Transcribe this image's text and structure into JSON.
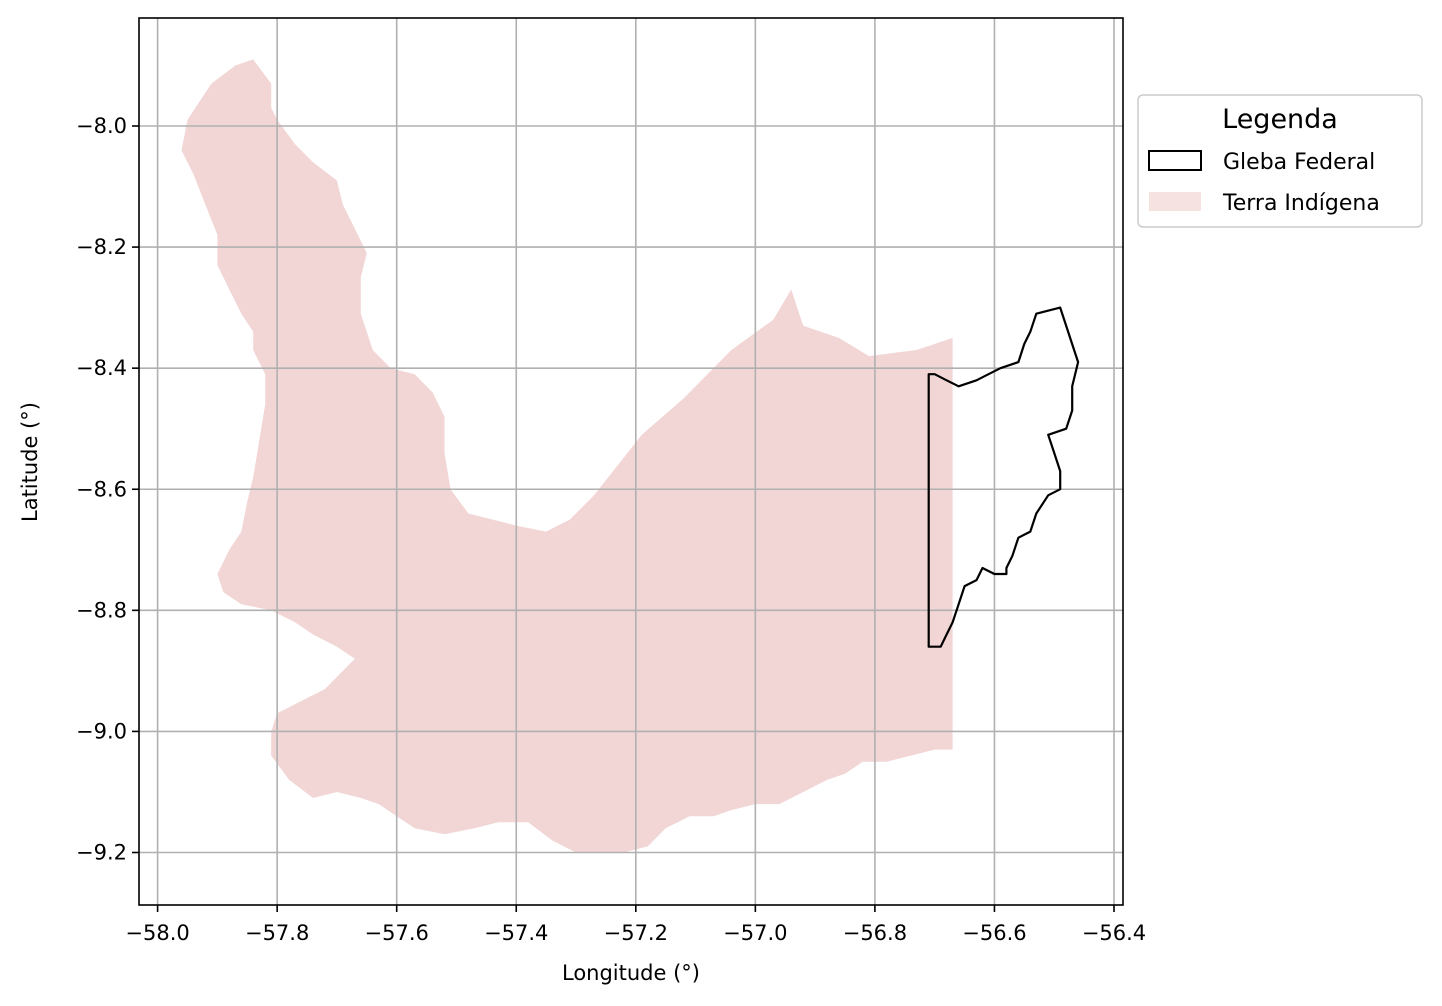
{
  "chart_data": {
    "type": "map",
    "xlabel": "Longitude (°)",
    "ylabel": "Latitude (°)",
    "xlim": [
      -58.03,
      -56.39
    ],
    "ylim": [
      -9.28,
      -7.82
    ],
    "grid": true,
    "legend_placement": "outside right, top",
    "x_ticks": [
      -58.0,
      -57.8,
      -57.6,
      -57.4,
      -57.2,
      -57.0,
      -56.8,
      -56.6,
      -56.4
    ],
    "x_tick_labels": [
      "−58.0",
      "−57.8",
      "−57.6",
      "−57.4",
      "−57.2",
      "−57.0",
      "−56.8",
      "−56.6",
      "−56.4"
    ],
    "y_ticks": [
      -8.0,
      -8.2,
      -8.4,
      -8.6,
      -8.8,
      -9.0,
      -9.2
    ],
    "y_tick_labels": [
      "−8.0",
      "−8.2",
      "−8.4",
      "−8.6",
      "−8.8",
      "−9.0",
      "−9.2"
    ],
    "legend": {
      "title": "Legenda",
      "entries": [
        {
          "label": "Gleba Federal",
          "kind": "outline",
          "color": "#000000"
        },
        {
          "label": "Terra Indígena",
          "kind": "fill",
          "color": "#f2d6d5"
        }
      ]
    },
    "layers": {
      "terra_indigena": {
        "name": "Terra Indígena",
        "fill": "#f2d6d5",
        "polygon": [
          [
            -57.84,
            -7.89
          ],
          [
            -57.81,
            -7.93
          ],
          [
            -57.81,
            -7.97
          ],
          [
            -57.8,
            -7.99
          ],
          [
            -57.77,
            -8.03
          ],
          [
            -57.74,
            -8.06
          ],
          [
            -57.7,
            -8.09
          ],
          [
            -57.69,
            -8.13
          ],
          [
            -57.67,
            -8.17
          ],
          [
            -57.65,
            -8.21
          ],
          [
            -57.66,
            -8.25
          ],
          [
            -57.66,
            -8.31
          ],
          [
            -57.64,
            -8.37
          ],
          [
            -57.61,
            -8.4
          ],
          [
            -57.57,
            -8.41
          ],
          [
            -57.54,
            -8.44
          ],
          [
            -57.52,
            -8.48
          ],
          [
            -57.52,
            -8.54
          ],
          [
            -57.51,
            -8.6
          ],
          [
            -57.48,
            -8.64
          ],
          [
            -57.44,
            -8.65
          ],
          [
            -57.4,
            -8.66
          ],
          [
            -57.35,
            -8.67
          ],
          [
            -57.31,
            -8.65
          ],
          [
            -57.27,
            -8.61
          ],
          [
            -57.19,
            -8.51
          ],
          [
            -57.12,
            -8.45
          ],
          [
            -57.04,
            -8.37
          ],
          [
            -56.97,
            -8.32
          ],
          [
            -56.94,
            -8.27
          ],
          [
            -56.92,
            -8.33
          ],
          [
            -56.86,
            -8.35
          ],
          [
            -56.81,
            -8.38
          ],
          [
            -56.73,
            -8.37
          ],
          [
            -56.67,
            -8.35
          ],
          [
            -56.67,
            -9.03
          ],
          [
            -56.7,
            -9.03
          ],
          [
            -56.74,
            -9.04
          ],
          [
            -56.78,
            -9.05
          ],
          [
            -56.82,
            -9.05
          ],
          [
            -56.85,
            -9.07
          ],
          [
            -56.88,
            -9.08
          ],
          [
            -56.92,
            -9.1
          ],
          [
            -56.96,
            -9.12
          ],
          [
            -57.0,
            -9.12
          ],
          [
            -57.04,
            -9.13
          ],
          [
            -57.07,
            -9.14
          ],
          [
            -57.11,
            -9.14
          ],
          [
            -57.15,
            -9.16
          ],
          [
            -57.18,
            -9.19
          ],
          [
            -57.22,
            -9.2
          ],
          [
            -57.25,
            -9.2
          ],
          [
            -57.3,
            -9.2
          ],
          [
            -57.34,
            -9.18
          ],
          [
            -57.38,
            -9.15
          ],
          [
            -57.43,
            -9.15
          ],
          [
            -57.47,
            -9.16
          ],
          [
            -57.52,
            -9.17
          ],
          [
            -57.57,
            -9.16
          ],
          [
            -57.6,
            -9.14
          ],
          [
            -57.63,
            -9.12
          ],
          [
            -57.66,
            -9.11
          ],
          [
            -57.7,
            -9.1
          ],
          [
            -57.74,
            -9.11
          ],
          [
            -57.78,
            -9.08
          ],
          [
            -57.81,
            -9.04
          ],
          [
            -57.81,
            -9.0
          ],
          [
            -57.8,
            -8.97
          ],
          [
            -57.76,
            -8.95
          ],
          [
            -57.72,
            -8.93
          ],
          [
            -57.69,
            -8.9
          ],
          [
            -57.67,
            -8.88
          ],
          [
            -57.7,
            -8.86
          ],
          [
            -57.74,
            -8.84
          ],
          [
            -57.77,
            -8.82
          ],
          [
            -57.81,
            -8.8
          ],
          [
            -57.86,
            -8.79
          ],
          [
            -57.89,
            -8.77
          ],
          [
            -57.9,
            -8.74
          ],
          [
            -57.88,
            -8.7
          ],
          [
            -57.86,
            -8.67
          ],
          [
            -57.85,
            -8.62
          ],
          [
            -57.84,
            -8.58
          ],
          [
            -57.83,
            -8.52
          ],
          [
            -57.82,
            -8.46
          ],
          [
            -57.82,
            -8.41
          ],
          [
            -57.84,
            -8.37
          ],
          [
            -57.84,
            -8.34
          ],
          [
            -57.86,
            -8.31
          ],
          [
            -57.88,
            -8.27
          ],
          [
            -57.9,
            -8.23
          ],
          [
            -57.9,
            -8.18
          ],
          [
            -57.92,
            -8.13
          ],
          [
            -57.94,
            -8.08
          ],
          [
            -57.96,
            -8.04
          ],
          [
            -57.95,
            -7.99
          ],
          [
            -57.93,
            -7.96
          ],
          [
            -57.91,
            -7.93
          ],
          [
            -57.87,
            -7.9
          ]
        ]
      },
      "gleba_federal": {
        "name": "Gleba Federal",
        "stroke": "#000000",
        "polygon": [
          [
            -56.71,
            -8.41
          ],
          [
            -56.7,
            -8.41
          ],
          [
            -56.68,
            -8.42
          ],
          [
            -56.66,
            -8.43
          ],
          [
            -56.63,
            -8.42
          ],
          [
            -56.61,
            -8.41
          ],
          [
            -56.59,
            -8.4
          ],
          [
            -56.56,
            -8.39
          ],
          [
            -56.55,
            -8.36
          ],
          [
            -56.54,
            -8.34
          ],
          [
            -56.53,
            -8.31
          ],
          [
            -56.49,
            -8.3
          ],
          [
            -56.46,
            -8.39
          ],
          [
            -56.47,
            -8.43
          ],
          [
            -56.47,
            -8.47
          ],
          [
            -56.48,
            -8.5
          ],
          [
            -56.51,
            -8.51
          ],
          [
            -56.5,
            -8.54
          ],
          [
            -56.49,
            -8.57
          ],
          [
            -56.49,
            -8.6
          ],
          [
            -56.51,
            -8.61
          ],
          [
            -56.53,
            -8.64
          ],
          [
            -56.54,
            -8.67
          ],
          [
            -56.56,
            -8.68
          ],
          [
            -56.57,
            -8.71
          ],
          [
            -56.58,
            -8.73
          ],
          [
            -56.58,
            -8.74
          ],
          [
            -56.6,
            -8.74
          ],
          [
            -56.62,
            -8.73
          ],
          [
            -56.63,
            -8.75
          ],
          [
            -56.65,
            -8.76
          ],
          [
            -56.66,
            -8.79
          ],
          [
            -56.67,
            -8.82
          ],
          [
            -56.68,
            -8.84
          ],
          [
            -56.69,
            -8.86
          ],
          [
            -56.71,
            -8.86
          ]
        ]
      }
    }
  }
}
